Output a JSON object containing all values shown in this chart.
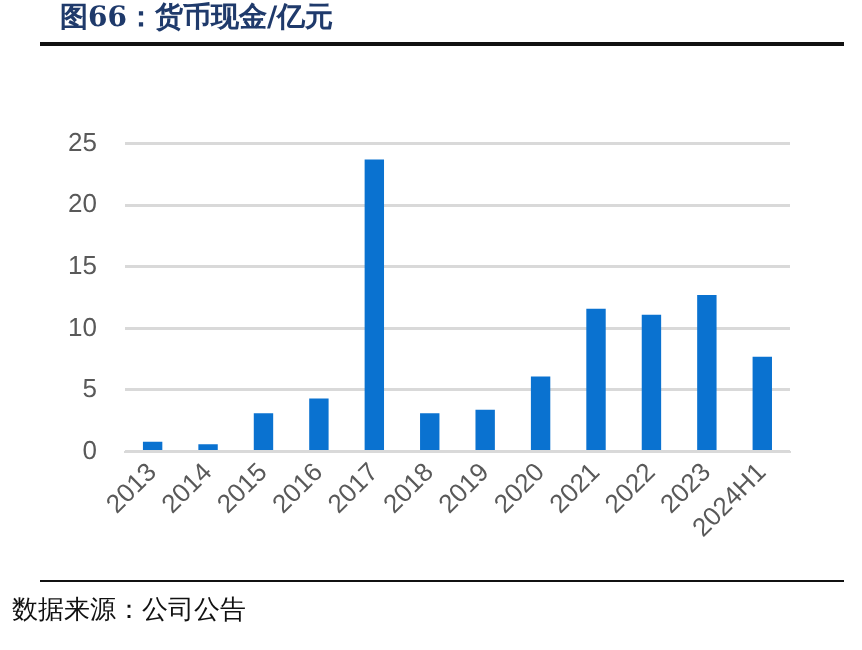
{
  "chart_data": {
    "type": "bar",
    "title": "图66：货币现金/亿元",
    "categories": [
      "2013",
      "2014",
      "2015",
      "2016",
      "2017",
      "2018",
      "2019",
      "2020",
      "2021",
      "2022",
      "2023",
      "2024H1"
    ],
    "values": [
      0.8,
      0.6,
      3.1,
      4.3,
      23.7,
      3.1,
      3.4,
      6.1,
      11.6,
      11.1,
      12.7,
      7.7
    ],
    "color": "#0a72d0",
    "ylim": [
      0,
      25
    ],
    "yticks": [
      0,
      5,
      10,
      15,
      20,
      25
    ],
    "grid": "y",
    "annotations": [
      "数据来源：公司公告"
    ]
  }
}
